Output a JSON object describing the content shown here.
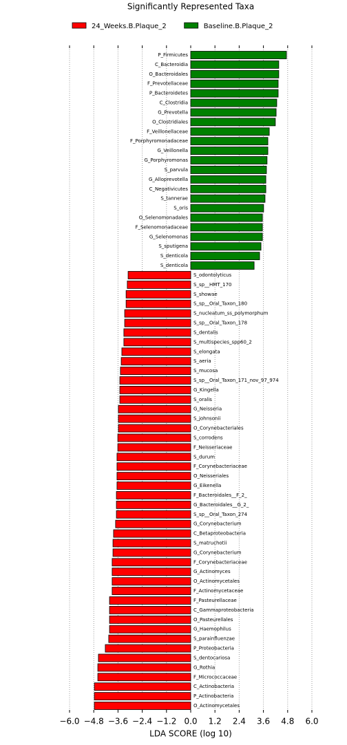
{
  "chart_data": {
    "type": "barh",
    "title": "Significantly Represented Taxa",
    "xlabel": "LDA SCORE (log 10)",
    "categories": [
      "P_Firmicutes",
      "C_Bacteroidia",
      "O_Bacteroidales",
      "F_Prevotellaceae",
      "P_Bacteroidetes",
      "C_Clostridia",
      "G_Prevotella",
      "O_Clostridiales",
      "F_Veillonellaceae",
      "F_Porphyromonadaceae",
      "G_Veillonella",
      "G_Porphyromonas",
      "S_parvula",
      "G_Alloprevotella",
      "C_Negativicutes",
      "S_tannerae",
      "S_oris",
      "O_Selenomonadales",
      "F_Selenomonadaceae",
      "G_Selenomonas",
      "S_sputigena",
      "S_denticola",
      "S_denticola",
      "S_odontolyticus",
      "S_sp__HMT_170",
      "S_showae",
      "S_sp__Oral_Taxon_180",
      "S_nucleatum_ss_polymorphum",
      "S_sp__Oral_Taxon_178",
      "S_dentalis",
      "S_multispecies_spp60_2",
      "S_elongata",
      "S_aeria",
      "S_mucosa",
      "S_sp__Oral_Taxon_171_nov_97_974",
      "G_Kingella",
      "S_oralis",
      "G_Neisseria",
      "S_johnsonii",
      "O_Corynebacteriales",
      "S_corrodens",
      "F_Neisseriaceae",
      "S_durum",
      "F_Corynebacteriaceae",
      "O_Neisseriales",
      "G_Eikenella",
      "F_Bacteroidales__F_2_",
      "G_Bacteroidales__G_2_",
      "S_sp__Oral_Taxon_274",
      "G_Corynebacterium",
      "C_Betaproteobacteria",
      "S_matruchotii",
      "G_Corynebacterium",
      "F_Corynebacteriaceae",
      "G_Actinomyces",
      "O_Actinomycetales",
      "F_Actinomycetaceae",
      "F_Pasteurellaceae",
      "C_Gammaproteobacteria",
      "O_Pasteurellales",
      "G_Haemophilus",
      "S_parainfluenzae",
      "P_Proteobacteria",
      "S_dentocariosa",
      "G_Rothia",
      "F_Micrococcaceae",
      "C_Actinobacteria",
      "P_Actinobacteria",
      "O_Actinomycetales"
    ],
    "series": [
      {
        "name": "24_Weeks.B.Plaque_2",
        "color": "#ff0000",
        "values": [
          null,
          null,
          null,
          null,
          null,
          null,
          null,
          null,
          null,
          null,
          null,
          null,
          null,
          null,
          null,
          null,
          null,
          null,
          null,
          null,
          null,
          null,
          null,
          -3.1,
          -3.14,
          -3.2,
          -3.2,
          -3.27,
          -3.27,
          -3.31,
          -3.31,
          -3.41,
          -3.44,
          -3.48,
          -3.51,
          -3.51,
          -3.51,
          -3.58,
          -3.58,
          -3.58,
          -3.61,
          -3.61,
          -3.65,
          -3.65,
          -3.65,
          -3.65,
          -3.68,
          -3.68,
          -3.68,
          -3.72,
          -3.82,
          -3.85,
          -3.85,
          -3.89,
          -3.89,
          -3.89,
          -3.89,
          -4.02,
          -4.02,
          -4.02,
          -4.02,
          -4.06,
          -4.23,
          -4.57,
          -4.6,
          -4.6,
          -4.77,
          -4.77,
          -4.77
        ]
      },
      {
        "name": "Baseline.B.Plaque_2",
        "color": "#008000",
        "values": [
          4.74,
          4.36,
          4.36,
          4.33,
          4.33,
          4.26,
          4.23,
          4.19,
          3.89,
          3.82,
          3.82,
          3.78,
          3.75,
          3.72,
          3.72,
          3.68,
          3.61,
          3.55,
          3.55,
          3.55,
          3.48,
          3.41,
          3.14,
          null,
          null,
          null,
          null,
          null,
          null,
          null,
          null,
          null,
          null,
          null,
          null,
          null,
          null,
          null,
          null,
          null,
          null,
          null,
          null,
          null,
          null,
          null,
          null,
          null,
          null,
          null,
          null,
          null,
          null,
          null,
          null,
          null,
          null,
          null,
          null,
          null,
          null,
          null,
          null,
          null,
          null,
          null,
          null,
          null,
          null
        ]
      }
    ],
    "xlim": [
      -6,
      6
    ],
    "xticks": [
      {
        "value": -6,
        "label": "−6.0"
      },
      {
        "value": -4.8,
        "label": "−4.8"
      },
      {
        "value": -3.6,
        "label": "−3.6"
      },
      {
        "value": -2.4,
        "label": "−2.4"
      },
      {
        "value": -1.2,
        "label": "−1.2"
      },
      {
        "value": 0,
        "label": "0.0"
      },
      1.2,
      2.4,
      3.6,
      4.8,
      {
        "value": 6,
        "label": "6.0"
      }
    ],
    "grid": true,
    "legend": "top"
  }
}
